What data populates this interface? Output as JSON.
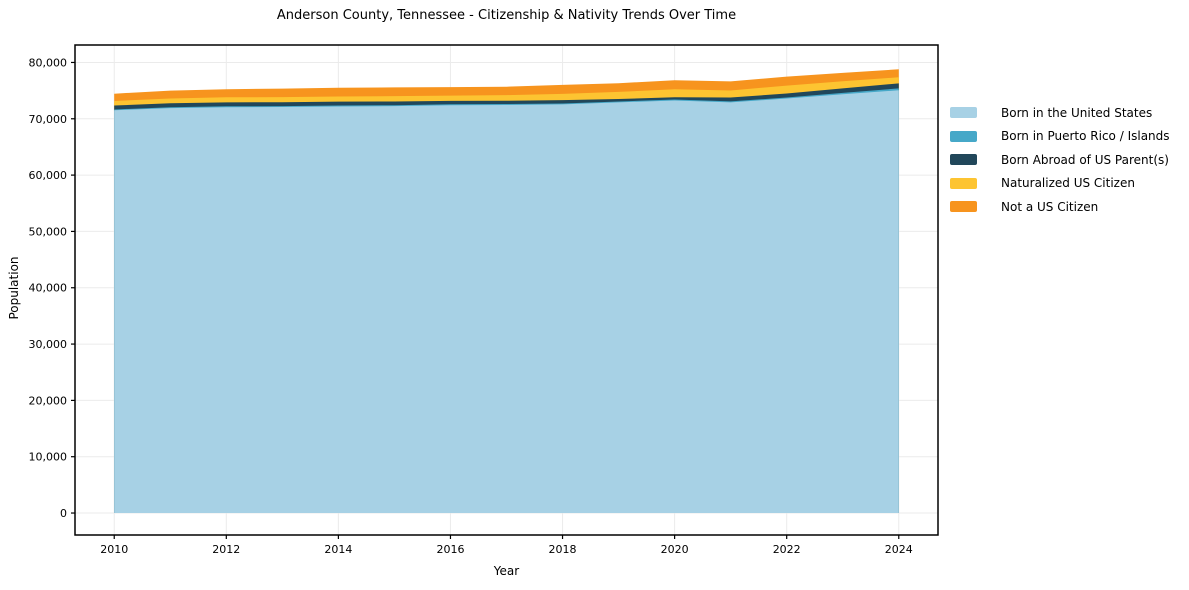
{
  "chart_data": {
    "type": "area",
    "stacked": true,
    "title": "Anderson County, Tennessee - Citizenship & Nativity Trends Over Time",
    "xlabel": "Year",
    "ylabel": "Population",
    "x": [
      2010,
      2011,
      2012,
      2013,
      2014,
      2015,
      2016,
      2017,
      2018,
      2019,
      2020,
      2021,
      2022,
      2023,
      2024
    ],
    "series": [
      {
        "name": "Born in the United States",
        "color": "#a7d1e5",
        "values": [
          71500,
          71900,
          72050,
          72100,
          72180,
          72250,
          72400,
          72450,
          72550,
          72900,
          73250,
          72900,
          73600,
          74350,
          75050
        ]
      },
      {
        "name": "Born in Puerto Rico / Islands",
        "color": "#46a8c8",
        "values": [
          150,
          150,
          160,
          160,
          170,
          170,
          170,
          170,
          170,
          170,
          180,
          180,
          180,
          250,
          350
        ]
      },
      {
        "name": "Born Abroad of US Parent(s)",
        "color": "#21475a",
        "values": [
          700,
          700,
          700,
          690,
          700,
          650,
          600,
          580,
          600,
          450,
          380,
          700,
          710,
          800,
          890
        ]
      },
      {
        "name": "Naturalized US Citizen",
        "color": "#fdc431",
        "values": [
          800,
          850,
          900,
          900,
          900,
          950,
          950,
          1000,
          1100,
          1250,
          1420,
          1250,
          1400,
          1250,
          1070
        ]
      },
      {
        "name": "Not a US Citizen",
        "color": "#f7941e",
        "values": [
          1300,
          1400,
          1450,
          1500,
          1550,
          1550,
          1500,
          1500,
          1600,
          1550,
          1600,
          1600,
          1600,
          1500,
          1420
        ]
      }
    ],
    "xlim": [
      2009.3,
      2024.7
    ],
    "ylim": [
      -3900,
      83100
    ],
    "xticks": {
      "values": [
        2010,
        2012,
        2014,
        2016,
        2018,
        2020,
        2022,
        2024
      ],
      "labels": [
        "2010",
        "2012",
        "2014",
        "2016",
        "2018",
        "2020",
        "2022",
        "2024"
      ]
    },
    "yticks": {
      "values": [
        0,
        10000,
        20000,
        30000,
        40000,
        50000,
        60000,
        70000,
        80000
      ],
      "labels": [
        "0",
        "10,000",
        "20,000",
        "30,000",
        "40,000",
        "50,000",
        "60,000",
        "70,000",
        "80,000"
      ]
    },
    "grid": true,
    "grid_color": "#ebebeb",
    "axis_color": "#000000",
    "tick_label_color": "#000000",
    "legend_position": "right of plot, no frame"
  }
}
